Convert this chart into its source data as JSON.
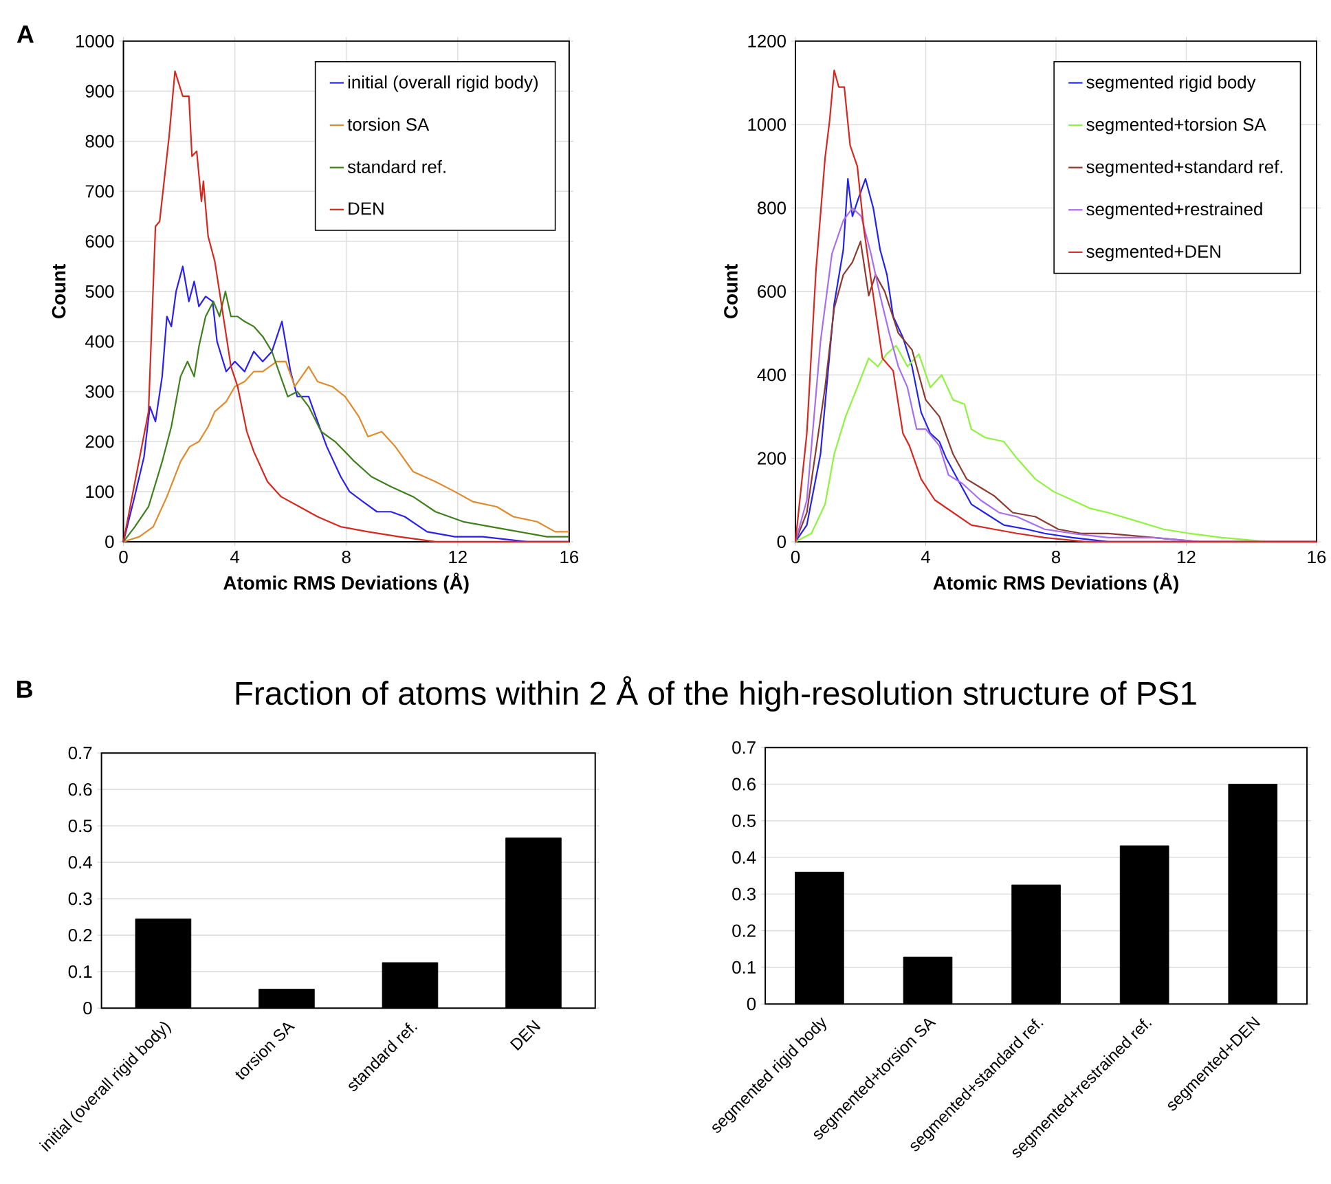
{
  "chart_data": [
    {
      "type": "line",
      "xlabel": "Atomic RMS Deviations (Å)",
      "ylabel": "Count",
      "xlim": [
        0,
        16
      ],
      "xticks": [
        0,
        4,
        8,
        12,
        16
      ],
      "ylim": [
        0,
        1000
      ],
      "yticks": [
        0,
        100,
        200,
        300,
        400,
        500,
        600,
        700,
        800,
        900,
        1000
      ],
      "grid": true,
      "legend": "top right",
      "annotations": [
        "A"
      ],
      "series": [
        {
          "name": "initial (overall rigid body)",
          "color": "#2a1ff0",
          "x": [
            0,
            0.4,
            0.74,
            0.95,
            1.15,
            1.39,
            1.56,
            1.72,
            1.89,
            2.13,
            2.35,
            2.54,
            2.71,
            2.95,
            3.2,
            3.36,
            3.69,
            4.0,
            4.35,
            4.68,
            5.0,
            5.33,
            5.69,
            6.0,
            6.24,
            6.65,
            6.97,
            7.3,
            7.8,
            8.12,
            8.6,
            9.1,
            9.6,
            10.1,
            10.9,
            11.9,
            12.9,
            14.5,
            16
          ],
          "values": [
            0,
            90,
            170,
            270,
            240,
            330,
            450,
            430,
            500,
            550,
            480,
            520,
            470,
            490,
            480,
            400,
            340,
            360,
            340,
            380,
            360,
            380,
            440,
            340,
            290,
            290,
            240,
            190,
            130,
            100,
            80,
            60,
            60,
            50,
            20,
            10,
            10,
            0,
            0
          ]
        },
        {
          "name": "torsion SA",
          "color": "#e08a2a",
          "x": [
            0,
            0.57,
            1.07,
            1.56,
            2.05,
            2.38,
            2.71,
            3.04,
            3.28,
            3.69,
            4.0,
            4.35,
            4.68,
            5.0,
            5.5,
            5.83,
            6.15,
            6.65,
            6.97,
            7.5,
            7.96,
            8.45,
            8.78,
            9.27,
            9.76,
            10.4,
            11.2,
            11.9,
            12.55,
            13.4,
            14.0,
            14.85,
            15.5,
            16
          ],
          "values": [
            0,
            10,
            30,
            90,
            160,
            190,
            200,
            230,
            260,
            280,
            310,
            320,
            340,
            340,
            360,
            360,
            310,
            350,
            320,
            310,
            290,
            250,
            210,
            220,
            190,
            140,
            120,
            100,
            80,
            70,
            50,
            40,
            20,
            20
          ]
        },
        {
          "name": "standard ref.",
          "color": "#3f7f1c",
          "x": [
            0,
            0.41,
            0.9,
            1.39,
            1.72,
            2.05,
            2.3,
            2.54,
            2.71,
            2.95,
            3.23,
            3.45,
            3.66,
            3.86,
            4.1,
            4.35,
            4.68,
            5.0,
            5.33,
            5.58,
            5.9,
            6.24,
            6.65,
            7.1,
            7.6,
            8.3,
            8.9,
            9.6,
            10.4,
            11.2,
            12.2,
            13.2,
            14.2,
            15.2,
            16
          ],
          "values": [
            0,
            30,
            70,
            160,
            230,
            330,
            360,
            330,
            390,
            450,
            480,
            450,
            500,
            450,
            450,
            440,
            430,
            410,
            380,
            340,
            290,
            300,
            270,
            220,
            200,
            160,
            130,
            110,
            90,
            60,
            40,
            30,
            20,
            10,
            10
          ]
        },
        {
          "name": "DEN",
          "color": "#d7261e",
          "x": [
            0,
            0.9,
            1.15,
            1.3,
            1.64,
            1.85,
            2.13,
            2.35,
            2.46,
            2.63,
            2.8,
            2.87,
            3.04,
            3.28,
            3.53,
            3.86,
            4.1,
            4.43,
            4.68,
            5.17,
            5.66,
            6.32,
            6.97,
            7.8,
            8.78,
            9.9,
            11.2,
            12.5,
            16
          ],
          "values": [
            0,
            260,
            630,
            640,
            810,
            940,
            890,
            890,
            770,
            780,
            680,
            720,
            610,
            560,
            470,
            350,
            310,
            220,
            180,
            120,
            90,
            70,
            50,
            30,
            20,
            10,
            0,
            0,
            0
          ]
        }
      ]
    },
    {
      "type": "line",
      "xlabel": "Atomic RMS Deviations (Å)",
      "ylabel": "Count",
      "xlim": [
        0,
        16
      ],
      "xticks": [
        0,
        4,
        8,
        12,
        16
      ],
      "ylim": [
        0,
        1200
      ],
      "yticks": [
        0,
        200,
        400,
        600,
        800,
        1000,
        1200
      ],
      "grid": true,
      "legend": "top right",
      "series": [
        {
          "name": "segmented rigid body",
          "color": "#2222ee",
          "x": [
            0,
            0.35,
            0.77,
            1.19,
            1.47,
            1.61,
            1.75,
            1.92,
            2.15,
            2.39,
            2.6,
            2.81,
            3.0,
            3.3,
            3.58,
            3.86,
            4.14,
            4.42,
            4.63,
            4.98,
            5.4,
            5.8,
            6.4,
            7.1,
            7.65,
            8.5,
            9.6,
            11,
            16
          ],
          "values": [
            0,
            40,
            210,
            570,
            700,
            870,
            780,
            820,
            870,
            800,
            700,
            640,
            540,
            490,
            420,
            310,
            260,
            240,
            200,
            150,
            90,
            70,
            40,
            30,
            20,
            10,
            0,
            0,
            0
          ]
        },
        {
          "name": "segmented+torsion SA",
          "color": "#8ef43c",
          "x": [
            0,
            0.49,
            0.91,
            1.19,
            1.54,
            1.9,
            2.25,
            2.53,
            2.8,
            3.09,
            3.44,
            3.79,
            4.14,
            4.49,
            4.84,
            5.19,
            5.4,
            5.82,
            6.4,
            6.8,
            7.37,
            7.93,
            8.5,
            9.05,
            9.6,
            10.46,
            11.3,
            12.1,
            13.1,
            14.5,
            16
          ],
          "values": [
            0,
            20,
            90,
            210,
            300,
            370,
            440,
            420,
            450,
            470,
            420,
            450,
            370,
            400,
            340,
            330,
            270,
            250,
            240,
            200,
            150,
            120,
            100,
            80,
            70,
            50,
            30,
            20,
            10,
            0,
            0
          ]
        },
        {
          "name": "segmented+standard ref.",
          "color": "#8b3a2e",
          "x": [
            0,
            0.35,
            0.91,
            1.19,
            1.47,
            1.75,
            2.0,
            2.25,
            2.46,
            2.74,
            3.16,
            3.58,
            4.0,
            4.42,
            4.84,
            5.26,
            5.68,
            6.1,
            6.67,
            7.37,
            8.07,
            8.77,
            9.6,
            11,
            12.4,
            13.8,
            16
          ],
          "values": [
            0,
            70,
            370,
            560,
            640,
            670,
            720,
            590,
            640,
            600,
            500,
            460,
            340,
            300,
            210,
            150,
            130,
            110,
            70,
            60,
            30,
            20,
            20,
            10,
            0,
            0,
            0
          ]
        },
        {
          "name": "segmented+restrained",
          "color": "#a86cf0",
          "x": [
            0,
            0.35,
            0.77,
            1.12,
            1.47,
            1.75,
            2.02,
            2.32,
            2.6,
            2.88,
            3.16,
            3.44,
            3.72,
            4.0,
            4.42,
            4.7,
            5.12,
            5.68,
            6.25,
            6.8,
            7.65,
            8.5,
            9.6,
            11,
            12.4,
            16
          ],
          "values": [
            0,
            100,
            480,
            690,
            770,
            800,
            780,
            690,
            590,
            500,
            420,
            370,
            270,
            270,
            230,
            160,
            140,
            100,
            70,
            60,
            30,
            20,
            10,
            10,
            0,
            0
          ]
        },
        {
          "name": "segmented+DEN",
          "color": "#d7261e",
          "x": [
            0,
            0.35,
            0.63,
            0.91,
            1.05,
            1.19,
            1.33,
            1.5,
            1.68,
            1.9,
            2.1,
            2.39,
            2.67,
            3.0,
            3.3,
            3.5,
            3.86,
            4.28,
            4.84,
            5.4,
            6.1,
            6.8,
            7.65,
            8.9,
            11,
            16
          ],
          "values": [
            0,
            260,
            650,
            920,
            1010,
            1130,
            1090,
            1090,
            950,
            900,
            750,
            590,
            440,
            410,
            260,
            230,
            150,
            100,
            70,
            40,
            30,
            20,
            10,
            0,
            0,
            0
          ]
        }
      ]
    },
    {
      "type": "bar",
      "title": "Fraction of atoms within 2 Å of the high-resolution structure of PS1",
      "categories": [
        "initial (overall rigid body)",
        "torsion SA",
        "standard ref.",
        "DEN"
      ],
      "values": [
        0.245,
        0.052,
        0.125,
        0.467
      ],
      "color": "#000000",
      "ylim": [
        0,
        0.7
      ],
      "yticks": [
        0,
        0.1,
        0.2,
        0.3,
        0.4,
        0.5,
        0.6,
        0.7
      ],
      "grid": "y",
      "annotations": [
        "B"
      ]
    },
    {
      "type": "bar",
      "categories": [
        "segmented rigid body",
        "segmented+torsion SA",
        "segmented+standard ref.",
        "segmented+restrained ref.",
        "segmented+DEN"
      ],
      "values": [
        0.36,
        0.128,
        0.325,
        0.432,
        0.6
      ],
      "color": "#000000",
      "ylim": [
        0,
        0.7
      ],
      "yticks": [
        0,
        0.1,
        0.2,
        0.3,
        0.4,
        0.5,
        0.6,
        0.7
      ],
      "grid": "y"
    }
  ]
}
